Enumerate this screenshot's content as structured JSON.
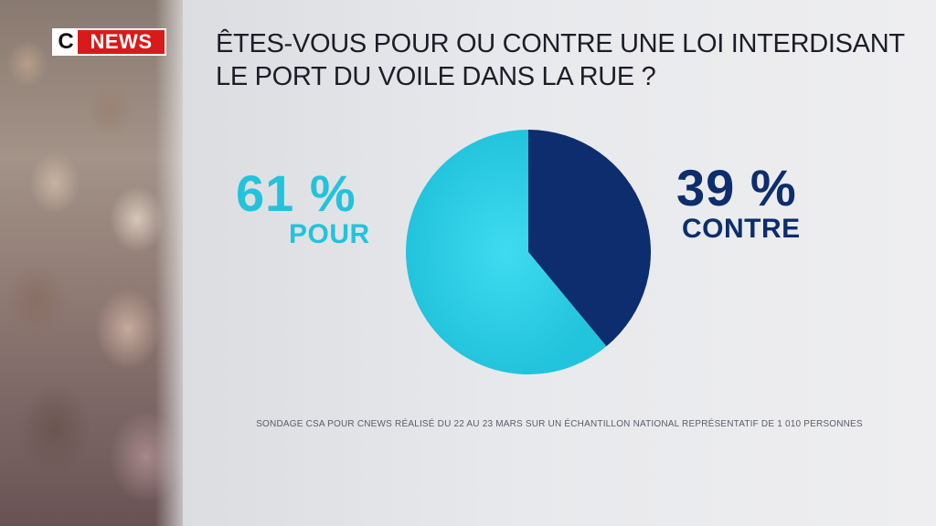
{
  "brand": {
    "logo_c": "C",
    "logo_news": "NEWS"
  },
  "question": {
    "line1": "ÊTES-VOUS POUR OU CONTRE UNE LOI INTERDISANT",
    "line2": "LE PORT DU VOILE DANS LA RUE ?"
  },
  "results": {
    "pour": {
      "percent_label": "61 %",
      "label": "POUR"
    },
    "contre": {
      "percent_label": "39 %",
      "label": "CONTRE"
    }
  },
  "source": "SONDAGE CSA POUR CNEWS RÉALISÉ DU 22 AU 23 MARS SUR UN ÉCHANTILLON NATIONAL REPRÉSENTATIF DE 1 010 PERSONNES",
  "colors": {
    "pour": "#22c3dc",
    "pour_light": "#3fdcf0",
    "contre": "#0d2d6e",
    "brand_red": "#d91a1a"
  },
  "chart_data": {
    "type": "pie",
    "title": "ÊTES-VOUS POUR OU CONTRE UNE LOI INTERDISANT LE PORT DU VOILE DANS LA RUE ?",
    "start_angle_deg": 0,
    "direction": "clockwise",
    "series": [
      {
        "name": "CONTRE",
        "value": 39,
        "color": "#0d2d6e"
      },
      {
        "name": "POUR",
        "value": 61,
        "color": "#22c3dc"
      }
    ]
  }
}
